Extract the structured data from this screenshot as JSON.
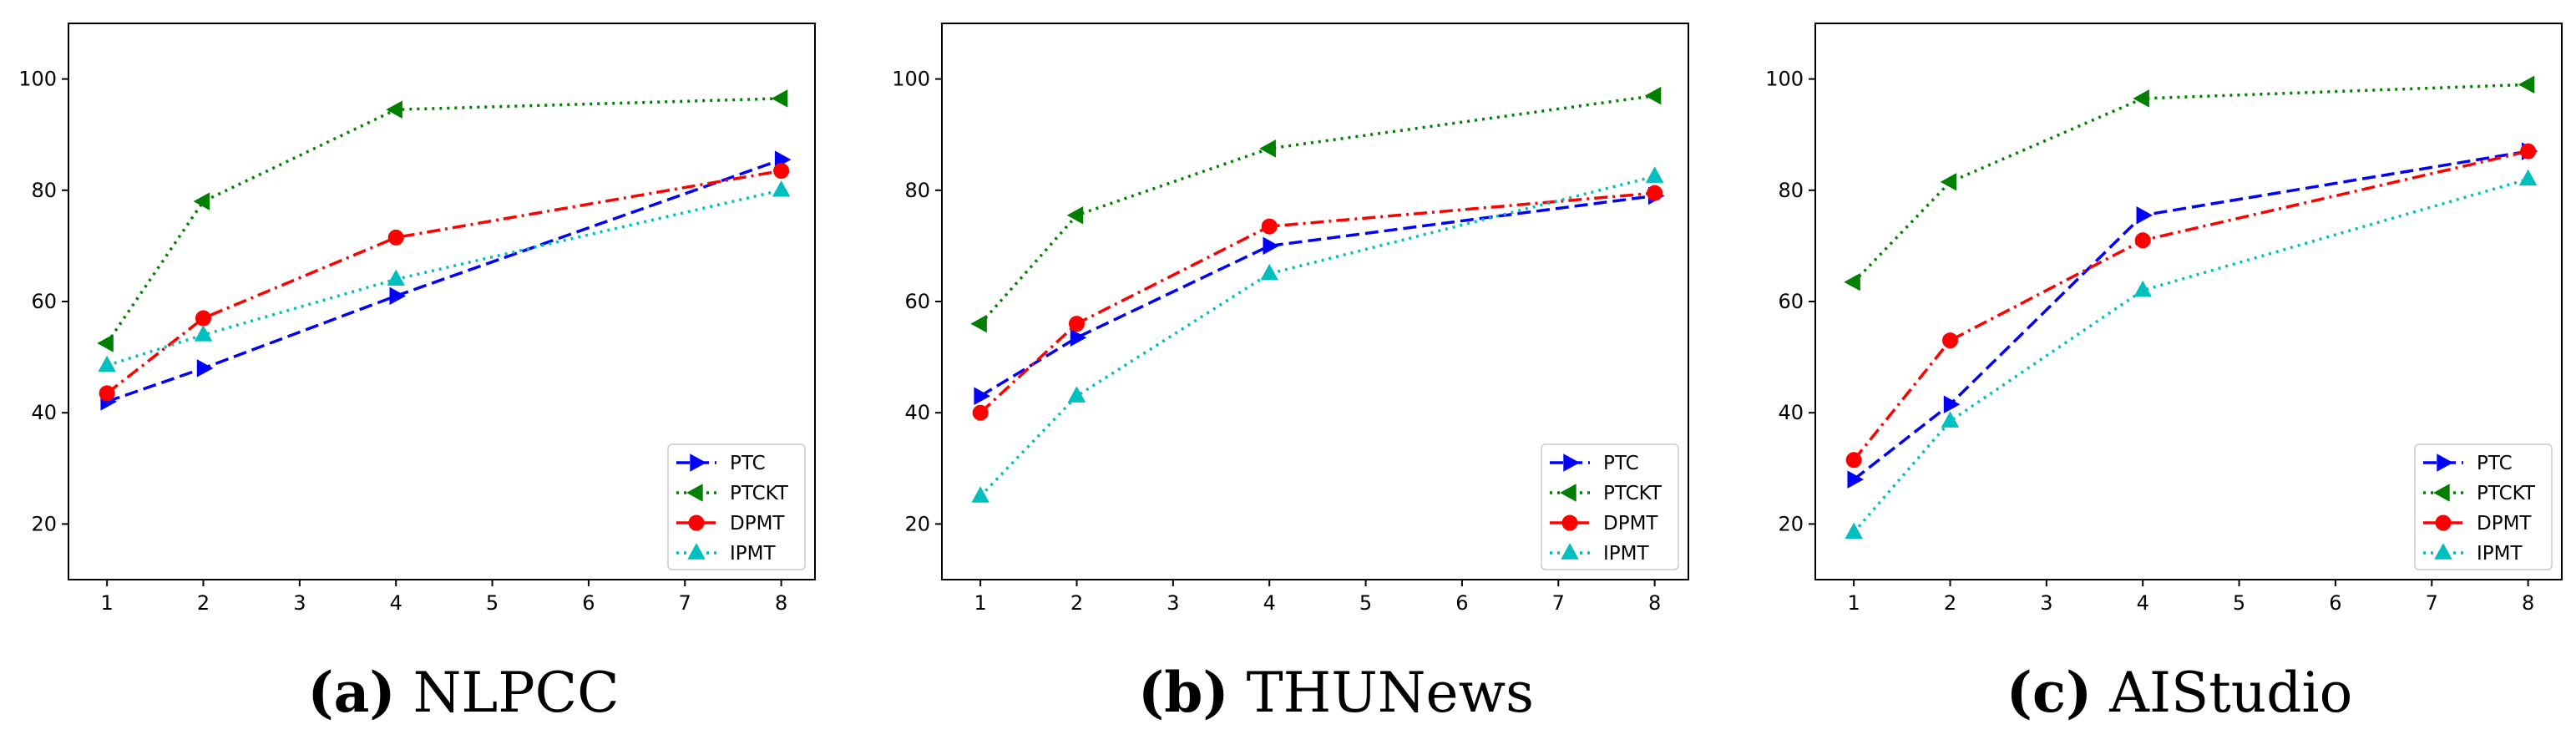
{
  "figure": {
    "captions": [
      {
        "letter": "(a)",
        "title": "NLPCC"
      },
      {
        "letter": "(b)",
        "title": "THUNews"
      },
      {
        "letter": "(c)",
        "title": "AIStudio"
      }
    ]
  },
  "chart_data": [
    {
      "type": "line",
      "title": "NLPCC",
      "xlabel": "",
      "ylabel": "",
      "x": [
        1,
        2,
        4,
        8
      ],
      "xlim": [
        0.6,
        8.35
      ],
      "ylim": [
        10,
        110
      ],
      "xticks": [
        1,
        2,
        3,
        4,
        5,
        6,
        7,
        8
      ],
      "yticks": [
        20,
        40,
        60,
        80,
        100
      ],
      "legend_position": "lower-right",
      "series": [
        {
          "name": "PTC",
          "values": [
            42.0,
            48.0,
            61.0,
            85.5
          ],
          "color": "#0000ff",
          "dash": "dashed",
          "marker": "triangle-right"
        },
        {
          "name": "PTCKT",
          "values": [
            52.5,
            78.0,
            94.5,
            96.5
          ],
          "color": "#008000",
          "dash": "dotted",
          "marker": "triangle-left"
        },
        {
          "name": "DPMT",
          "values": [
            43.5,
            57.0,
            71.5,
            83.5
          ],
          "color": "#ff0000",
          "dash": "dashdot",
          "marker": "circle"
        },
        {
          "name": "IPMT",
          "values": [
            48.5,
            54.0,
            64.0,
            80.0
          ],
          "color": "#00bfbf",
          "dash": "dotted",
          "marker": "triangle-up"
        }
      ]
    },
    {
      "type": "line",
      "title": "THUNews",
      "xlabel": "",
      "ylabel": "",
      "x": [
        1,
        2,
        4,
        8
      ],
      "xlim": [
        0.6,
        8.35
      ],
      "ylim": [
        10,
        110
      ],
      "xticks": [
        1,
        2,
        3,
        4,
        5,
        6,
        7,
        8
      ],
      "yticks": [
        20,
        40,
        60,
        80,
        100
      ],
      "legend_position": "lower-right",
      "series": [
        {
          "name": "PTC",
          "values": [
            43.0,
            53.5,
            70.0,
            79.0
          ],
          "color": "#0000ff",
          "dash": "dashed",
          "marker": "triangle-right"
        },
        {
          "name": "PTCKT",
          "values": [
            56.0,
            75.5,
            87.5,
            97.0
          ],
          "color": "#008000",
          "dash": "dotted",
          "marker": "triangle-left"
        },
        {
          "name": "DPMT",
          "values": [
            40.0,
            56.0,
            73.5,
            79.5
          ],
          "color": "#ff0000",
          "dash": "dashdot",
          "marker": "circle"
        },
        {
          "name": "IPMT",
          "values": [
            25.0,
            43.0,
            65.0,
            82.5
          ],
          "color": "#00bfbf",
          "dash": "dotted",
          "marker": "triangle-up"
        }
      ]
    },
    {
      "type": "line",
      "title": "AIStudio",
      "xlabel": "",
      "ylabel": "",
      "x": [
        1,
        2,
        4,
        8
      ],
      "xlim": [
        0.6,
        8.35
      ],
      "ylim": [
        10,
        110
      ],
      "xticks": [
        1,
        2,
        3,
        4,
        5,
        6,
        7,
        8
      ],
      "yticks": [
        20,
        40,
        60,
        80,
        100
      ],
      "legend_position": "lower-right",
      "series": [
        {
          "name": "PTC",
          "values": [
            28.0,
            41.5,
            75.5,
            87.0
          ],
          "color": "#0000ff",
          "dash": "dashed",
          "marker": "triangle-right"
        },
        {
          "name": "PTCKT",
          "values": [
            63.5,
            81.5,
            96.5,
            99.0
          ],
          "color": "#008000",
          "dash": "dotted",
          "marker": "triangle-left"
        },
        {
          "name": "DPMT",
          "values": [
            31.5,
            53.0,
            71.0,
            87.0
          ],
          "color": "#ff0000",
          "dash": "dashdot",
          "marker": "circle"
        },
        {
          "name": "IPMT",
          "values": [
            18.5,
            38.5,
            62.0,
            82.0
          ],
          "color": "#00bfbf",
          "dash": "dotted",
          "marker": "triangle-up"
        }
      ]
    }
  ]
}
